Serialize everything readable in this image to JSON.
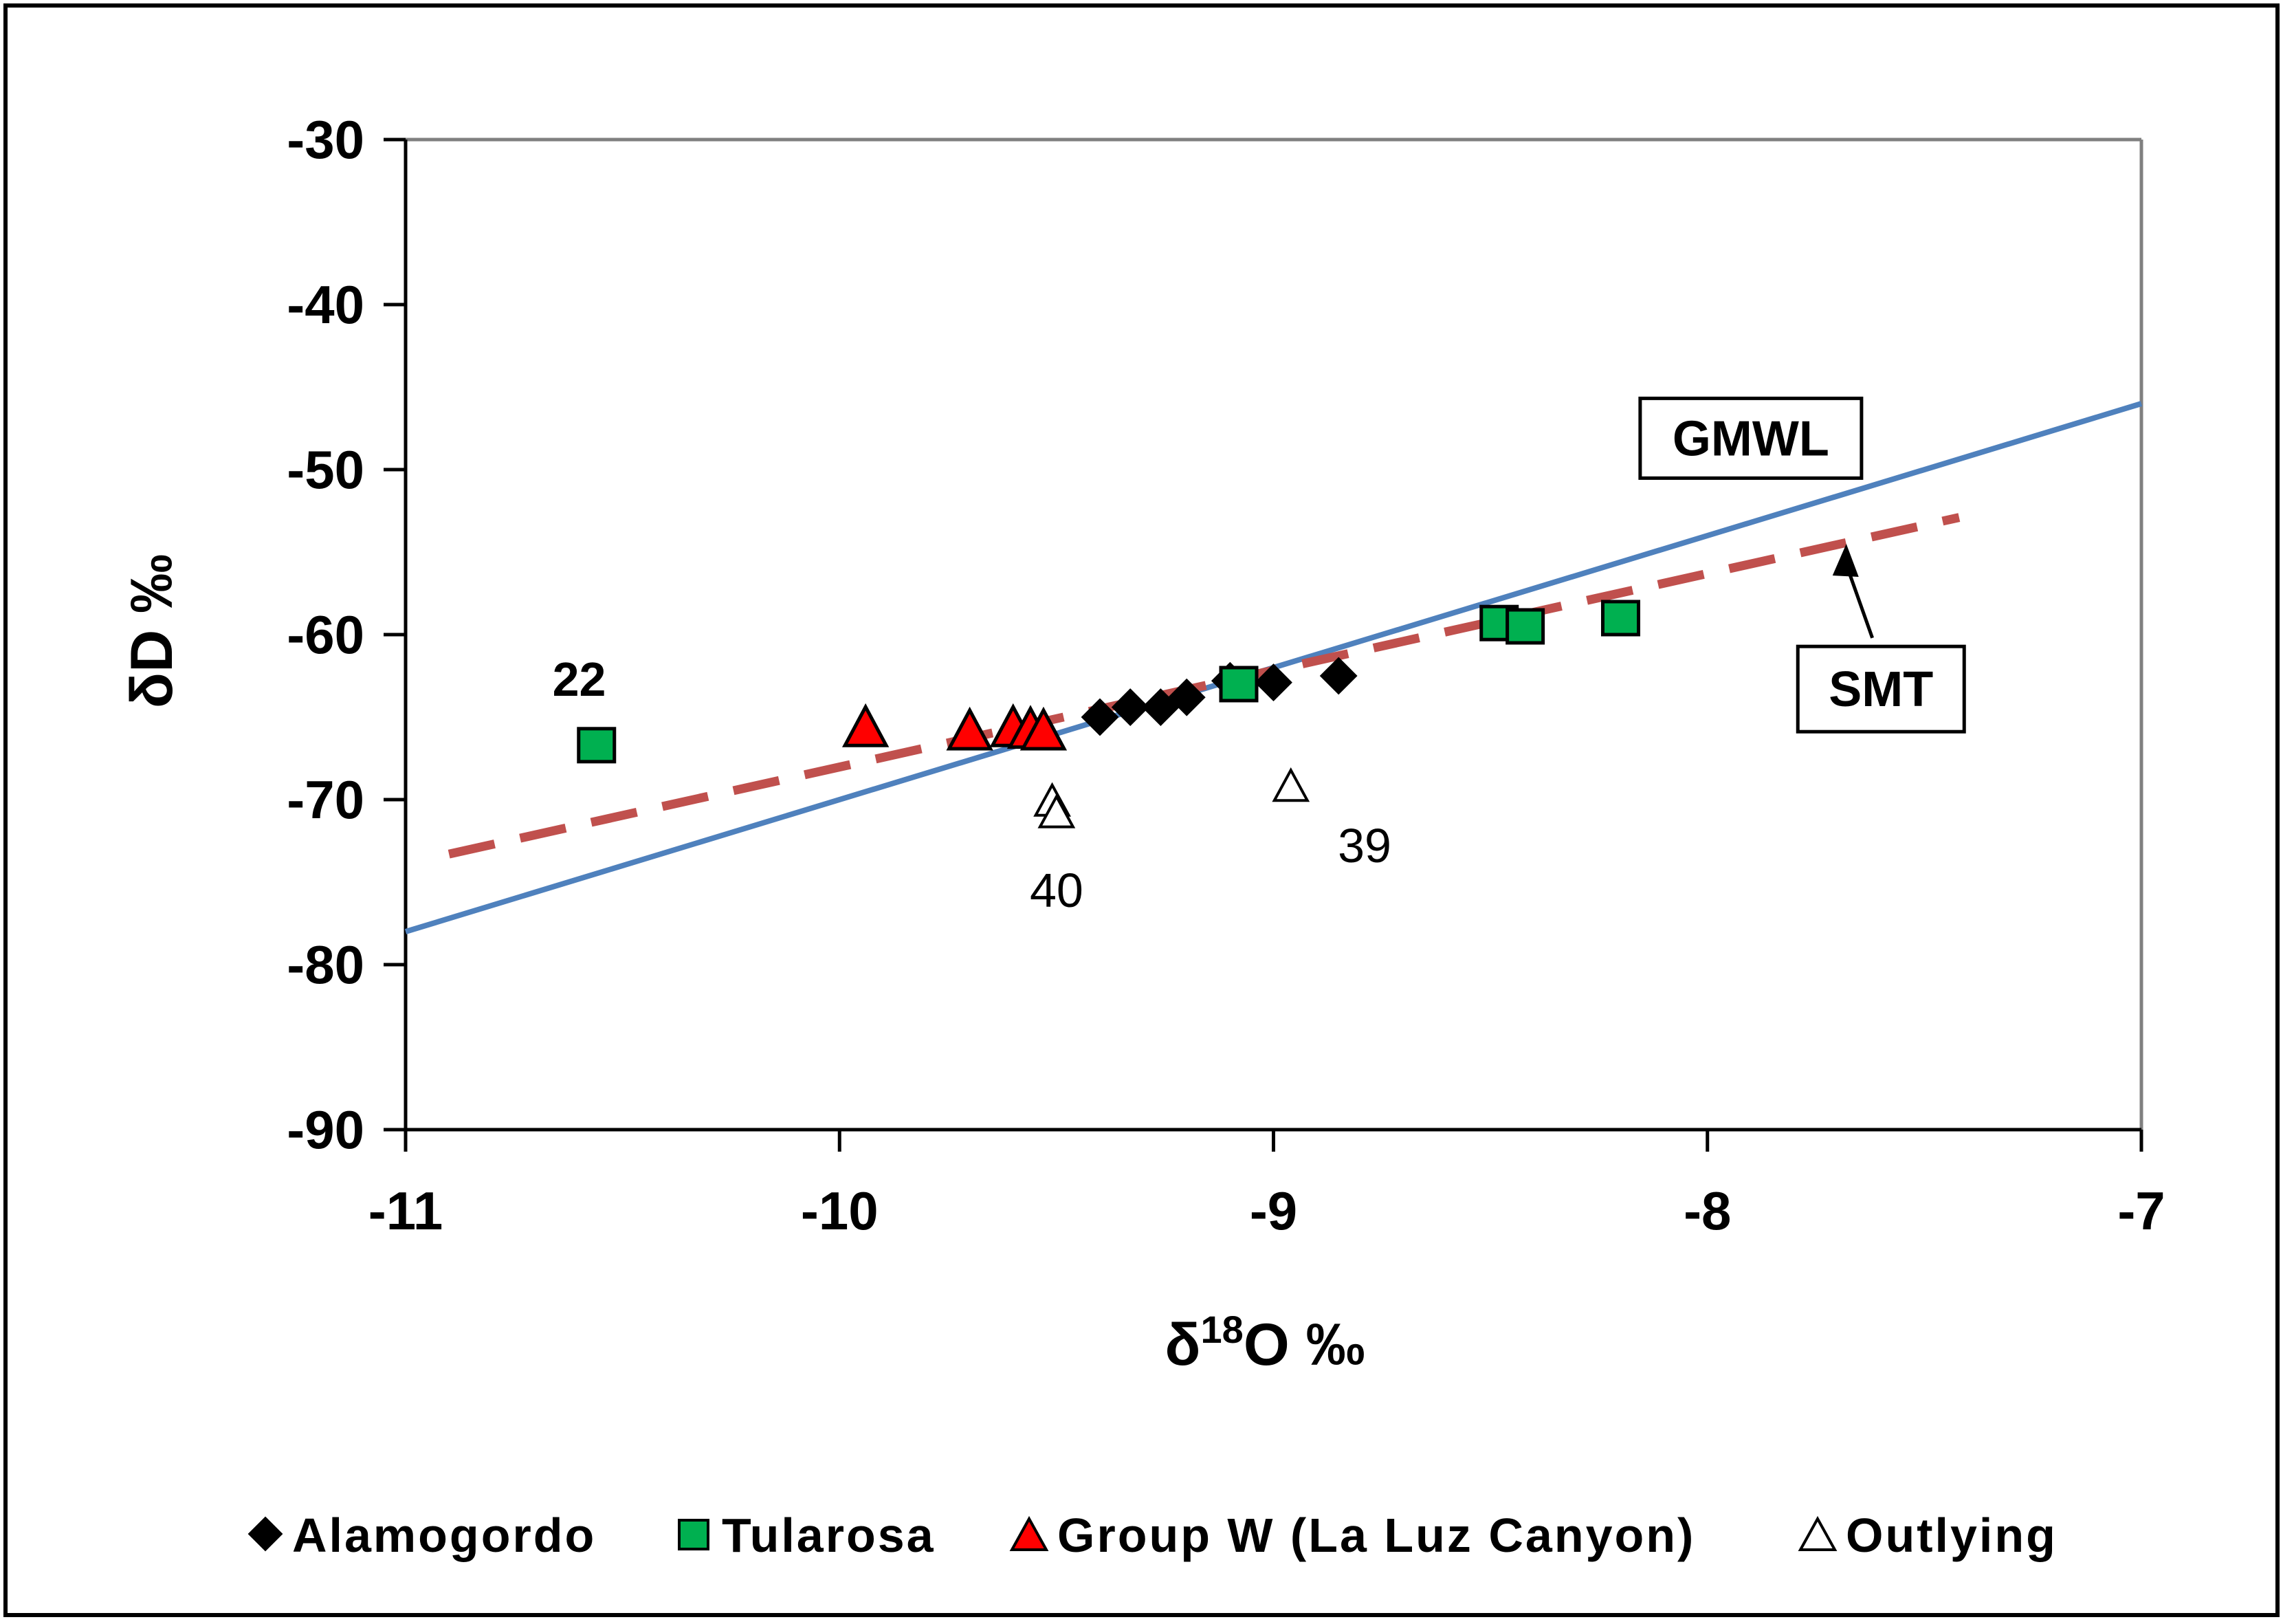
{
  "chart_data": {
    "type": "scatter",
    "title": "",
    "xlabel_main": "δ",
    "xlabel_sup": "18",
    "xlabel_tail": "O ‰",
    "ylabel": "δD ‰",
    "xlim": [
      -11,
      -7
    ],
    "ylim": [
      -90,
      -30
    ],
    "x_ticks": [
      -11,
      -10,
      -9,
      -8,
      -7
    ],
    "y_ticks": [
      -30,
      -40,
      -50,
      -60,
      -70,
      -80,
      -90
    ],
    "x_tick_labels": [
      "-11",
      "-10",
      "-9",
      "-8",
      "-7"
    ],
    "y_tick_labels": [
      "-30",
      "-40",
      "-50",
      "-60",
      "-70",
      "-80",
      "-90"
    ],
    "grid": false,
    "series": [
      {
        "name": "Alamogordo",
        "marker": "diamond",
        "color": "#000000",
        "x": [
          -9.4,
          -9.33,
          -9.26,
          -9.2,
          -9.1,
          -9.0,
          -8.85
        ],
        "y": [
          -65.0,
          -64.4,
          -64.4,
          -63.8,
          -62.8,
          -62.9,
          -62.5
        ]
      },
      {
        "name": "Tularosa",
        "marker": "square",
        "color": "#00b050",
        "x": [
          -10.56,
          -9.08,
          -8.48,
          -8.42,
          -8.2
        ],
        "y": [
          -66.7,
          -63.0,
          -59.3,
          -59.5,
          -59.0
        ]
      },
      {
        "name": "Group W (La Luz Canyon)",
        "marker": "triangle",
        "color": "#ff0000",
        "x": [
          -9.94,
          -9.7,
          -9.6,
          -9.56,
          -9.53
        ],
        "y": [
          -65.8,
          -66.0,
          -65.8,
          -65.9,
          -66.0
        ]
      },
      {
        "name": "Outlying",
        "marker": "open-triangle",
        "color": "#ffffff",
        "x": [
          -9.51,
          -9.5,
          -8.96
        ],
        "y": [
          -70.2,
          -70.9,
          -69.3
        ]
      }
    ],
    "lines": [
      {
        "name": "GMWL",
        "style": "solid",
        "color": "#4f81bd",
        "x": [
          -11,
          -7
        ],
        "y": [
          -78,
          -46
        ]
      },
      {
        "name": "SMT",
        "style": "dashed",
        "color": "#c0504d",
        "x": [
          -10.9,
          -7.42
        ],
        "y": [
          -73.3,
          -52.9
        ]
      }
    ],
    "annotations": [
      {
        "text": "22",
        "bold": true,
        "x": -10.6,
        "y": -63.7
      },
      {
        "text": "40",
        "bold": false,
        "x": -9.5,
        "y": -76.5
      },
      {
        "text": "39",
        "bold": false,
        "x": -8.79,
        "y": -73.8
      }
    ],
    "line_labels": [
      {
        "text": "GMWL",
        "anchor_x": -7.9,
        "anchor_y": -48.1
      },
      {
        "text": "SMT",
        "anchor_x": -7.6,
        "anchor_y": -63.3
      }
    ],
    "smt_arrow": {
      "from_x": -7.62,
      "from_y": -60.2,
      "to_x": -7.68,
      "to_y": -54.5
    },
    "legend_position": "bottom",
    "colors": {
      "axis": "#000000",
      "right_top_frame": "#808080",
      "gmwl": "#4f81bd",
      "smt": "#c0504d",
      "tularosa": "#00b050",
      "group_w": "#ff0000"
    }
  }
}
